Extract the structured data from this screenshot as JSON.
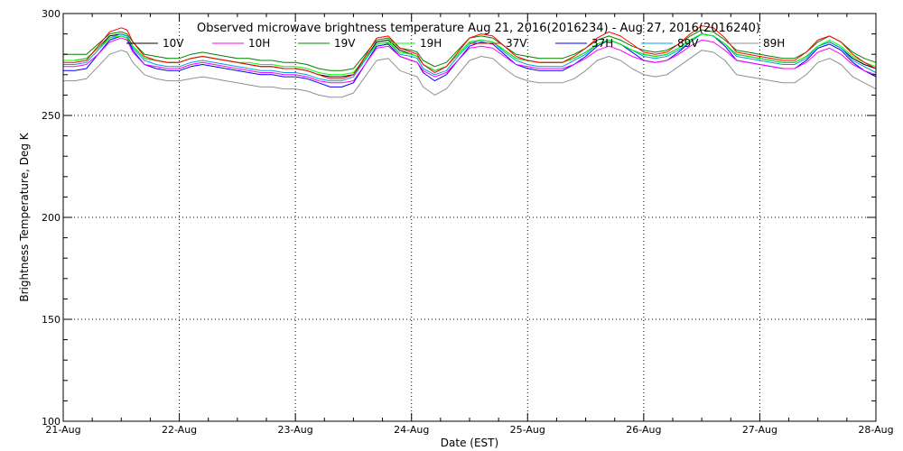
{
  "chart_data": {
    "type": "line",
    "title": "Observed microwave brightness temperature Aug 21, 2016(2016234) - Aug 27, 2016(2016240)",
    "xlabel": "Date (EST)",
    "ylabel": "Brightness Temperature, Deg K",
    "xlim": [
      0,
      7
    ],
    "ylim": [
      100,
      300
    ],
    "x_ticks": [
      {
        "x": 0,
        "label": "21-Aug"
      },
      {
        "x": 1,
        "label": "22-Aug"
      },
      {
        "x": 2,
        "label": "23-Aug"
      },
      {
        "x": 3,
        "label": "24-Aug"
      },
      {
        "x": 4,
        "label": "25-Aug"
      },
      {
        "x": 5,
        "label": "26-Aug"
      },
      {
        "x": 6,
        "label": "27-Aug"
      },
      {
        "x": 7,
        "label": "28-Aug"
      }
    ],
    "y_ticks": [
      {
        "y": 100,
        "label": "100"
      },
      {
        "y": 150,
        "label": "150"
      },
      {
        "y": 200,
        "label": "200"
      },
      {
        "y": 250,
        "label": "250"
      },
      {
        "y": 300,
        "label": "300"
      }
    ],
    "grid": true,
    "legend_position": "top",
    "x": [
      0,
      0.1,
      0.2,
      0.3,
      0.4,
      0.5,
      0.55,
      0.6,
      0.7,
      0.8,
      0.9,
      1.0,
      1.1,
      1.2,
      1.3,
      1.4,
      1.5,
      1.6,
      1.7,
      1.8,
      1.9,
      2.0,
      2.1,
      2.2,
      2.3,
      2.4,
      2.5,
      2.6,
      2.7,
      2.8,
      2.9,
      3.0,
      3.05,
      3.1,
      3.2,
      3.3,
      3.4,
      3.5,
      3.6,
      3.7,
      3.8,
      3.9,
      4.0,
      4.1,
      4.2,
      4.3,
      4.4,
      4.5,
      4.6,
      4.7,
      4.8,
      4.9,
      5.0,
      5.1,
      5.2,
      5.3,
      5.4,
      5.5,
      5.6,
      5.7,
      5.8,
      5.9,
      6.0,
      6.1,
      6.2,
      6.3,
      6.4,
      6.5,
      6.6,
      6.7,
      6.8,
      6.9,
      7.0
    ],
    "series": [
      {
        "name": "10V",
        "color": "#000000",
        "values": [
          277,
          277,
          278,
          283,
          289,
          290,
          289,
          284,
          278,
          277,
          276,
          276,
          278,
          279,
          278,
          277,
          276,
          275,
          274,
          274,
          273,
          273,
          272,
          270,
          269,
          269,
          270,
          278,
          286,
          287,
          282,
          280,
          279,
          275,
          272,
          274,
          280,
          286,
          287,
          286,
          282,
          278,
          277,
          276,
          276,
          276,
          278,
          281,
          285,
          287,
          285,
          282,
          280,
          279,
          280,
          283,
          287,
          290,
          289,
          285,
          280,
          279,
          278,
          277,
          276,
          276,
          279,
          284,
          286,
          283,
          278,
          275,
          273
        ]
      },
      {
        "name": "10H",
        "color": "#ff00ff",
        "values": [
          274,
          274,
          275,
          280,
          286,
          288,
          287,
          281,
          275,
          274,
          273,
          273,
          275,
          276,
          275,
          274,
          273,
          272,
          271,
          271,
          270,
          270,
          269,
          267,
          266,
          266,
          267,
          275,
          283,
          284,
          279,
          277,
          276,
          272,
          269,
          271,
          277,
          283,
          284,
          283,
          279,
          275,
          274,
          273,
          273,
          273,
          275,
          278,
          282,
          284,
          282,
          279,
          277,
          276,
          277,
          280,
          284,
          287,
          286,
          282,
          277,
          276,
          275,
          274,
          273,
          273,
          276,
          281,
          283,
          280,
          275,
          272,
          270
        ]
      },
      {
        "name": "19V",
        "color": "#008000",
        "values": [
          280,
          280,
          280,
          285,
          290,
          291,
          290,
          286,
          280,
          279,
          278,
          278,
          280,
          281,
          280,
          279,
          278,
          278,
          277,
          277,
          276,
          276,
          275,
          273,
          272,
          272,
          273,
          280,
          287,
          288,
          283,
          282,
          281,
          277,
          274,
          276,
          282,
          288,
          289,
          288,
          284,
          280,
          279,
          278,
          278,
          278,
          280,
          283,
          287,
          289,
          287,
          284,
          282,
          281,
          282,
          285,
          289,
          292,
          291,
          287,
          282,
          281,
          280,
          279,
          278,
          278,
          281,
          286,
          289,
          286,
          281,
          278,
          276
        ]
      },
      {
        "name": "19H",
        "color": "#00ff00",
        "values": [
          277,
          277,
          278,
          283,
          288,
          289,
          288,
          284,
          278,
          277,
          276,
          276,
          278,
          279,
          278,
          277,
          276,
          276,
          275,
          275,
          274,
          274,
          273,
          271,
          270,
          270,
          271,
          278,
          285,
          286,
          281,
          280,
          279,
          275,
          272,
          274,
          280,
          286,
          287,
          286,
          282,
          278,
          277,
          276,
          276,
          276,
          278,
          281,
          285,
          287,
          285,
          282,
          280,
          279,
          280,
          283,
          287,
          290,
          289,
          285,
          280,
          279,
          278,
          277,
          276,
          276,
          279,
          284,
          287,
          284,
          279,
          276,
          274
        ]
      },
      {
        "name": "37V",
        "color": "#ff0000",
        "values": [
          276,
          276,
          277,
          284,
          291,
          293,
          292,
          286,
          279,
          277,
          276,
          276,
          278,
          279,
          278,
          277,
          276,
          275,
          274,
          274,
          273,
          273,
          272,
          270,
          268,
          268,
          270,
          279,
          288,
          289,
          283,
          281,
          280,
          275,
          271,
          274,
          281,
          288,
          290,
          289,
          284,
          279,
          277,
          276,
          276,
          276,
          279,
          283,
          288,
          291,
          289,
          285,
          281,
          280,
          281,
          285,
          290,
          294,
          293,
          288,
          281,
          280,
          279,
          278,
          277,
          277,
          281,
          287,
          289,
          286,
          280,
          276,
          273
        ]
      },
      {
        "name": "37H",
        "color": "#0000ff",
        "values": [
          272,
          272,
          273,
          280,
          287,
          289,
          288,
          282,
          275,
          273,
          272,
          272,
          274,
          275,
          274,
          273,
          272,
          271,
          270,
          270,
          269,
          269,
          268,
          266,
          264,
          264,
          266,
          275,
          284,
          285,
          279,
          277,
          276,
          271,
          267,
          270,
          277,
          284,
          286,
          285,
          280,
          275,
          273,
          272,
          272,
          272,
          275,
          279,
          284,
          287,
          285,
          281,
          277,
          276,
          277,
          281,
          286,
          290,
          289,
          284,
          277,
          276,
          275,
          274,
          273,
          273,
          277,
          283,
          285,
          282,
          276,
          272,
          269
        ]
      },
      {
        "name": "89V",
        "color": "#00a0e0",
        "values": [
          275,
          275,
          276,
          282,
          288,
          290,
          289,
          283,
          277,
          275,
          274,
          274,
          276,
          277,
          276,
          275,
          274,
          273,
          272,
          272,
          271,
          271,
          270,
          268,
          267,
          267,
          269,
          277,
          285,
          286,
          280,
          279,
          278,
          273,
          270,
          272,
          279,
          285,
          287,
          286,
          281,
          277,
          275,
          274,
          274,
          274,
          277,
          280,
          285,
          287,
          285,
          282,
          279,
          278,
          279,
          282,
          286,
          290,
          289,
          285,
          279,
          278,
          277,
          276,
          275,
          275,
          278,
          284,
          286,
          283,
          277,
          274,
          271
        ]
      },
      {
        "name": "89H",
        "color": "#909090",
        "values": [
          267,
          267,
          268,
          274,
          280,
          282,
          281,
          276,
          270,
          268,
          267,
          267,
          268,
          269,
          268,
          267,
          266,
          265,
          264,
          264,
          263,
          263,
          262,
          260,
          259,
          259,
          261,
          269,
          277,
          278,
          272,
          270,
          269,
          264,
          260,
          263,
          270,
          277,
          279,
          278,
          273,
          269,
          267,
          266,
          266,
          266,
          268,
          272,
          277,
          279,
          277,
          273,
          270,
          269,
          270,
          274,
          278,
          282,
          281,
          277,
          270,
          269,
          268,
          267,
          266,
          266,
          270,
          276,
          278,
          275,
          269,
          266,
          263
        ]
      }
    ]
  }
}
